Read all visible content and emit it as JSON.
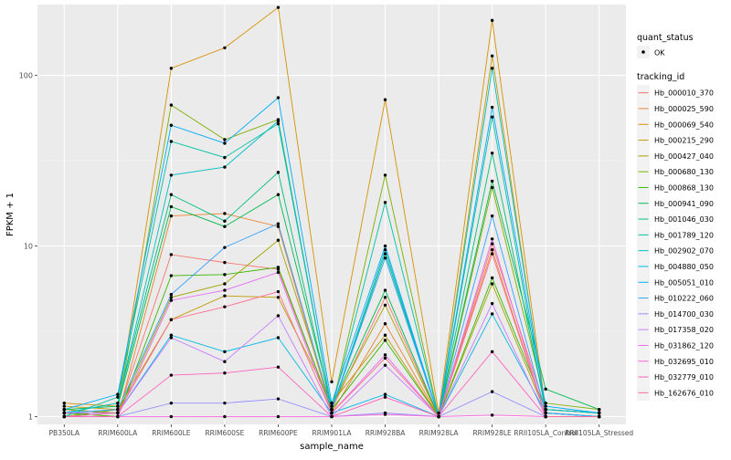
{
  "chart_data": {
    "type": "line",
    "xlabel": "sample_name",
    "ylabel": "FPKM + 1",
    "y_scale": "log10",
    "ylim": [
      0.9,
      260
    ],
    "y_ticks": [
      1,
      10,
      100
    ],
    "y_tick_labels": [
      "1",
      "10",
      "100"
    ],
    "grid": true,
    "legend_position": "right",
    "categories": [
      "PB350LA",
      "RRIM600LA",
      "RRIM600LE",
      "RRIM600SE",
      "RRIM600PE",
      "RRIM901LA",
      "RRIM928BA",
      "RRIM928LA",
      "RRIM928LE",
      "RRII105LA_Control",
      "RRII105LA_Stressed"
    ],
    "point_legend": {
      "title": "quant_status",
      "label": "OK"
    },
    "series_legend_title": "tracking_id",
    "series": [
      {
        "name": "Hb_000010_370",
        "color": "#F8766D",
        "values": [
          1.1,
          1.05,
          8.9,
          8.0,
          7.3,
          1.1,
          5.0,
          1.0,
          10.3,
          1.1,
          1.05
        ]
      },
      {
        "name": "Hb_000025_590",
        "color": "#EA8331",
        "values": [
          1.05,
          1.0,
          15.0,
          15.5,
          13.0,
          1.05,
          3.5,
          1.0,
          9.5,
          1.0,
          1.0
        ]
      },
      {
        "name": "Hb_000069_540",
        "color": "#D89000",
        "values": [
          1.2,
          1.15,
          110,
          145,
          250,
          1.6,
          72,
          1.05,
          210,
          1.1,
          1.05
        ]
      },
      {
        "name": "Hb_000215_290",
        "color": "#C09B00",
        "values": [
          1.15,
          1.1,
          3.7,
          5.1,
          5.0,
          1.2,
          3.0,
          1.0,
          130,
          1.05,
          1.0
        ]
      },
      {
        "name": "Hb_000427_040",
        "color": "#A3A500",
        "values": [
          1.1,
          1.05,
          5.0,
          6.0,
          10.8,
          1.15,
          4.5,
          1.0,
          6.0,
          1.05,
          1.0
        ]
      },
      {
        "name": "Hb_000680_130",
        "color": "#7CAE00",
        "values": [
          1.0,
          1.1,
          67,
          42,
          55,
          1.1,
          26,
          1.0,
          22,
          1.2,
          1.1
        ]
      },
      {
        "name": "Hb_000868_130",
        "color": "#39B600",
        "values": [
          1.05,
          1.0,
          6.7,
          6.8,
          7.5,
          1.1,
          2.8,
          1.0,
          6.5,
          1.1,
          1.05
        ]
      },
      {
        "name": "Hb_000941_090",
        "color": "#00BB4E",
        "values": [
          1.1,
          1.15,
          17.0,
          13.0,
          20.0,
          1.15,
          5.5,
          1.0,
          24.0,
          1.45,
          1.1
        ]
      },
      {
        "name": "Hb_001046_030",
        "color": "#00BF7D",
        "values": [
          1.05,
          1.2,
          20.0,
          14.0,
          27.0,
          1.1,
          9.0,
          1.0,
          35.0,
          1.1,
          1.05
        ]
      },
      {
        "name": "Hb_001789_120",
        "color": "#00C1A3",
        "values": [
          1.0,
          1.3,
          41.0,
          33.0,
          52.0,
          1.1,
          18.0,
          1.0,
          57.0,
          1.05,
          1.0
        ]
      },
      {
        "name": "Hb_002902_070",
        "color": "#00BFC4",
        "values": [
          1.05,
          1.2,
          26.0,
          29.0,
          54.0,
          1.1,
          9.5,
          1.0,
          110,
          1.1,
          1.05
        ]
      },
      {
        "name": "Hb_004880_050",
        "color": "#00B8E5",
        "values": [
          1.0,
          1.05,
          3.0,
          2.4,
          2.9,
          1.05,
          1.35,
          1.0,
          4.0,
          1.05,
          1.0
        ]
      },
      {
        "name": "Hb_005051_010",
        "color": "#00ACFC",
        "values": [
          1.1,
          1.35,
          51.0,
          40.0,
          74.0,
          1.2,
          10.0,
          1.0,
          65.0,
          1.15,
          1.05
        ]
      },
      {
        "name": "Hb_010222_060",
        "color": "#35A2FF",
        "values": [
          1.05,
          1.1,
          5.2,
          9.8,
          13.5,
          1.1,
          8.5,
          1.0,
          15.0,
          1.05,
          1.0
        ]
      },
      {
        "name": "Hb_014700_030",
        "color": "#9590FF",
        "values": [
          1.0,
          1.0,
          1.2,
          1.2,
          1.27,
          1.0,
          1.05,
          1.0,
          1.4,
          1.0,
          1.0
        ]
      },
      {
        "name": "Hb_017358_020",
        "color": "#C77CFF",
        "values": [
          1.05,
          1.05,
          2.9,
          2.1,
          3.9,
          1.0,
          2.0,
          1.0,
          4.6,
          1.0,
          1.0
        ]
      },
      {
        "name": "Hb_031862_120",
        "color": "#E76BF3",
        "values": [
          1.0,
          1.0,
          4.8,
          5.5,
          7.0,
          1.05,
          2.3,
          1.0,
          11.0,
          1.0,
          1.0
        ]
      },
      {
        "name": "Hb_032695_010",
        "color": "#FA62DB",
        "values": [
          1.0,
          1.0,
          1.0,
          1.0,
          1.0,
          1.0,
          1.03,
          1.0,
          1.02,
          1.0,
          1.0
        ]
      },
      {
        "name": "Hb_032779_010",
        "color": "#FF62BC",
        "values": [
          1.0,
          1.0,
          1.75,
          1.8,
          1.95,
          1.0,
          1.3,
          1.0,
          2.4,
          1.0,
          1.0
        ]
      },
      {
        "name": "Hb_162676_010",
        "color": "#FF6C91",
        "values": [
          1.0,
          1.05,
          3.7,
          4.4,
          5.4,
          1.05,
          2.2,
          1.0,
          9.0,
          1.0,
          1.0
        ]
      }
    ]
  }
}
